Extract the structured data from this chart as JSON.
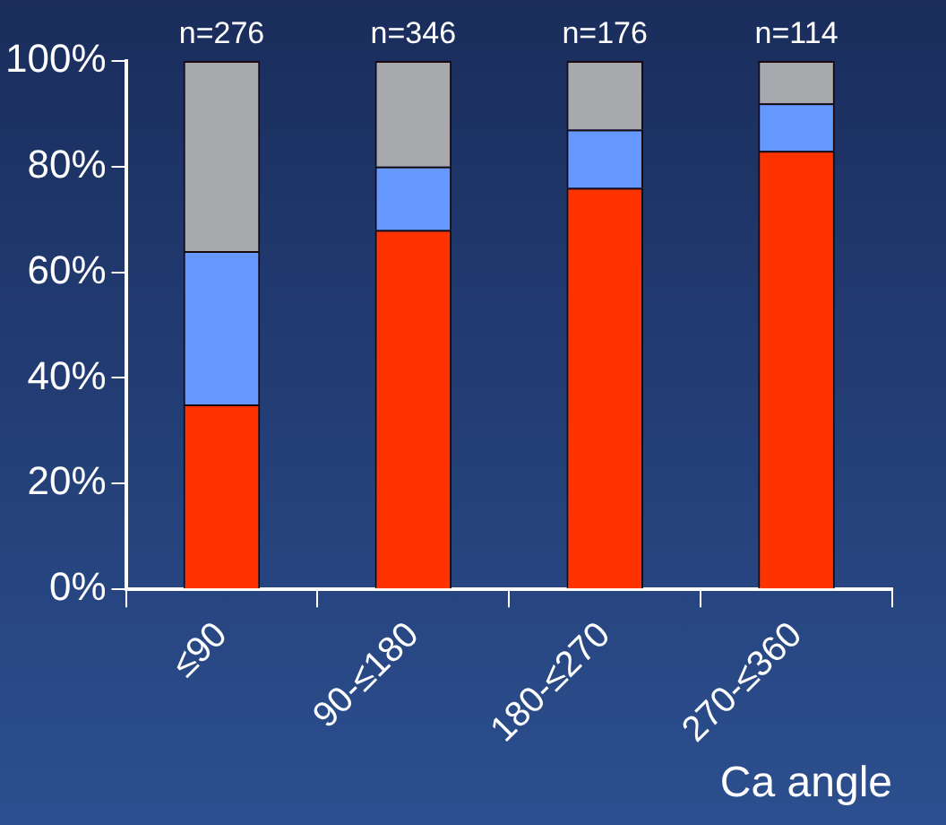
{
  "chart_data": {
    "type": "bar",
    "stacked": true,
    "xlabel": "Ca angle",
    "categories": [
      "≤90",
      "90-≤180",
      "180-≤270",
      "270-≤360"
    ],
    "series": [
      {
        "color": "#ff3300",
        "values": [
          35,
          68,
          76,
          83
        ]
      },
      {
        "color": "#6699ff",
        "values": [
          29,
          12,
          11,
          9
        ]
      },
      {
        "color": "#a7a9ac",
        "values": [
          36,
          20,
          13,
          8
        ]
      }
    ],
    "ylim": [
      0,
      100
    ],
    "yticks": [
      {
        "value": 0,
        "label": "0%"
      },
      {
        "value": 20,
        "label": "20%"
      },
      {
        "value": 40,
        "label": "40%"
      },
      {
        "value": 60,
        "label": "60%"
      },
      {
        "value": 80,
        "label": "80%"
      },
      {
        "value": 100,
        "label": "100%"
      }
    ],
    "annotations": [
      {
        "text": "n=276",
        "x": "≤90",
        "y": 100
      },
      {
        "text": "n=346",
        "x": "90-≤180",
        "y": 100
      },
      {
        "text": "n=176",
        "x": "180-≤270",
        "y": 100
      },
      {
        "text": "n=114",
        "x": "270-≤360",
        "y": 100
      }
    ],
    "grid": false,
    "legend": false
  }
}
